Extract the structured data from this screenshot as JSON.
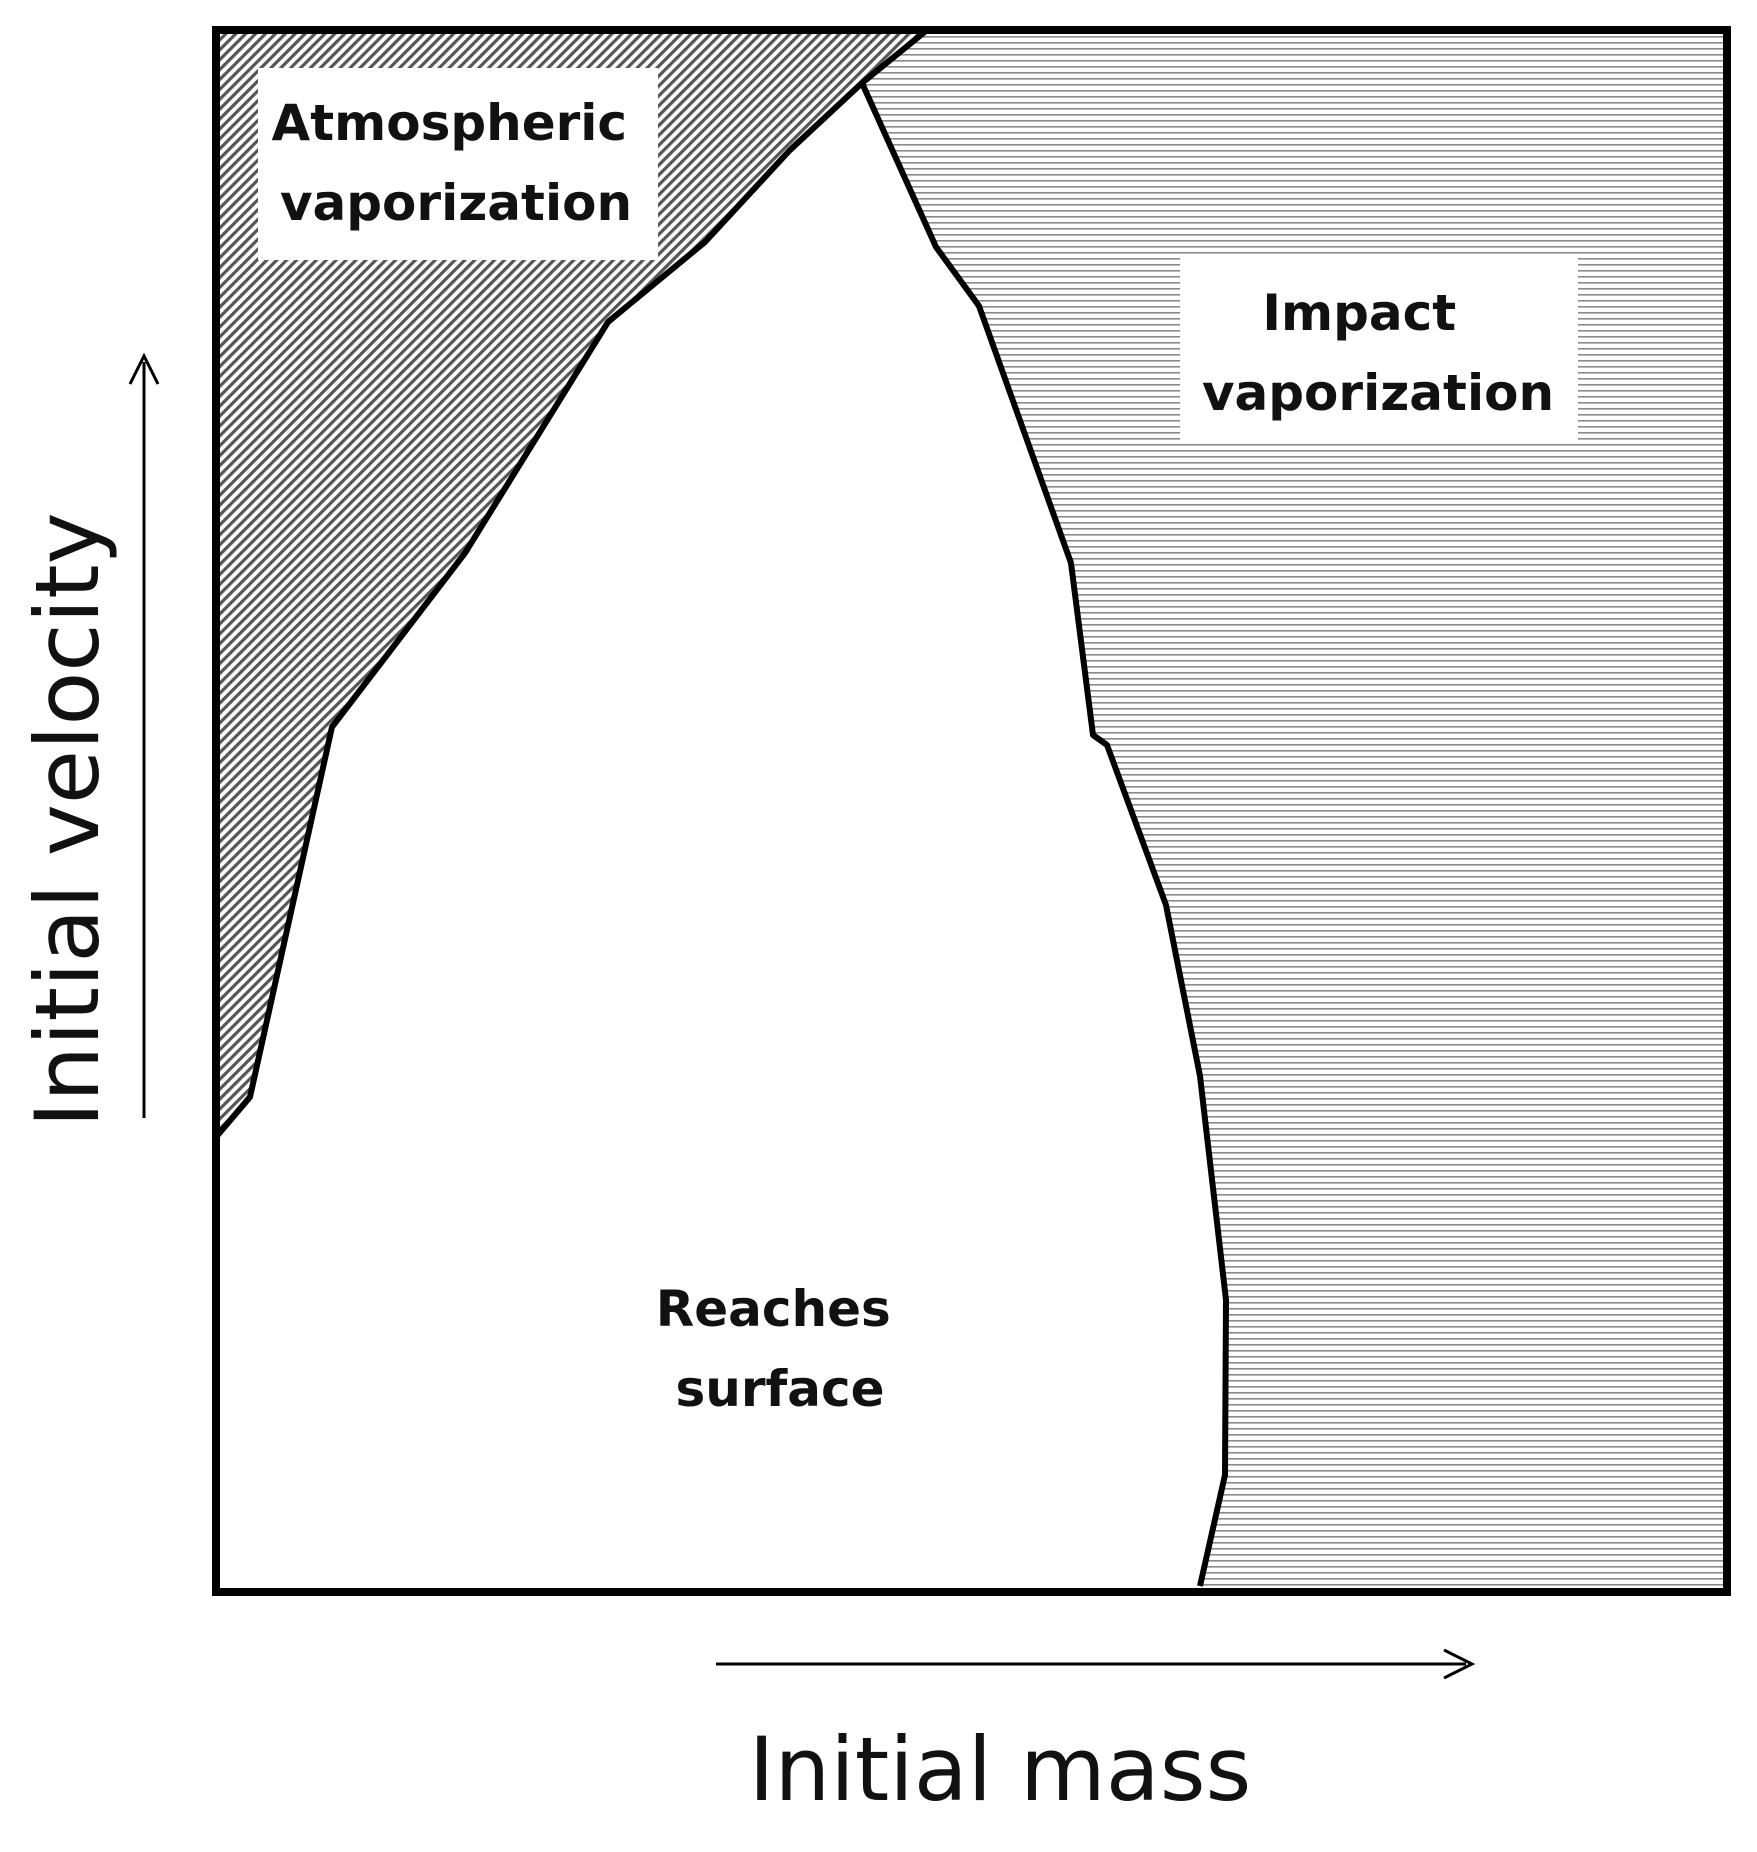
{
  "regions": {
    "atmospheric": {
      "line1": "Atmospheric",
      "line2": "vaporization",
      "pattern": "diagonal-hatch"
    },
    "impact": {
      "line1": "Impact",
      "line2": "vaporization",
      "pattern": "horizontal-lines"
    },
    "surface": {
      "line1": "Reaches",
      "line2": "surface"
    }
  },
  "axes": {
    "x_label": "Initial mass",
    "y_label": "Initial velocity"
  },
  "colors": {
    "ink": "#000000",
    "hatch_dark": "#5a5a5a",
    "line_gray": "#8a8a8a",
    "background": "#ffffff"
  }
}
